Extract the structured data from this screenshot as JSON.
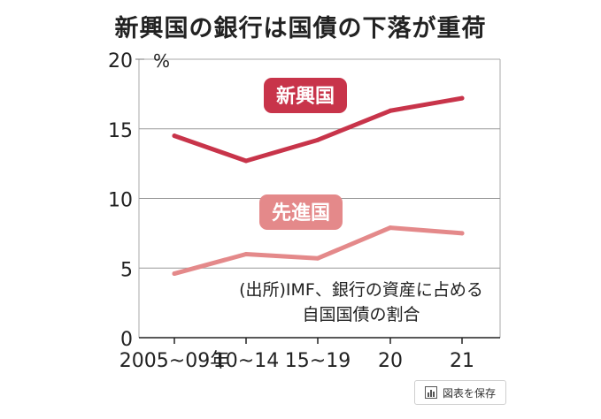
{
  "title": "新興国の銀行は国債の下落が重荷",
  "chart_data": {
    "type": "line",
    "title": "新興国の銀行は国債の下落が重荷",
    "categories": [
      "2005~09年",
      "10~14",
      "15~19",
      "20",
      "21"
    ],
    "series": [
      {
        "name": "新興国",
        "values": [
          14.5,
          12.7,
          14.2,
          16.3,
          17.2
        ],
        "color": "#c8344a"
      },
      {
        "name": "先進国",
        "values": [
          4.6,
          6.0,
          5.7,
          7.9,
          7.5
        ],
        "color": "#e4898a"
      }
    ],
    "y_ticks": [
      "0",
      "5",
      "10",
      "15",
      "20"
    ],
    "y_unit": "%",
    "ylim": [
      0,
      20
    ],
    "grid": true,
    "note": "(出所)IMF、銀行の資産に占める自国国債の割合"
  },
  "save_button": {
    "label": "図表を保存",
    "icon": "chart-icon"
  }
}
